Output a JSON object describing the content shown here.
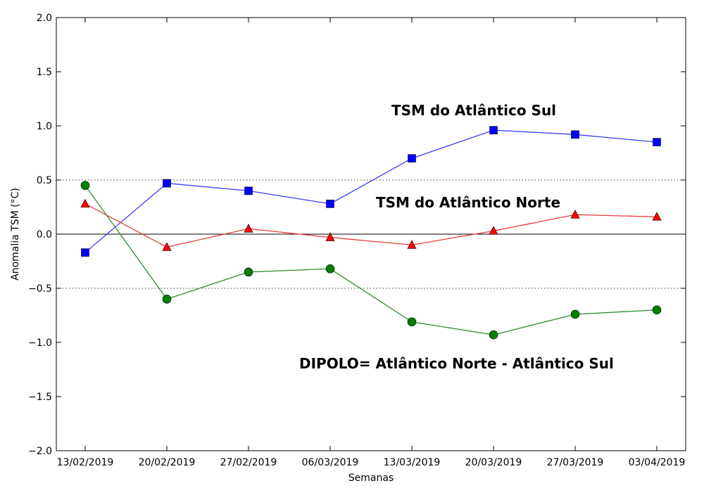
{
  "chart_data": {
    "type": "line",
    "title": "",
    "xlabel": "Semanas",
    "ylabel": "Anomalia TSM (°C)",
    "categories": [
      "13/02/2019",
      "20/02/2019",
      "27/02/2019",
      "06/03/2019",
      "13/03/2019",
      "20/03/2019",
      "27/03/2019",
      "03/04/2019"
    ],
    "ylim": [
      -2.0,
      2.0
    ],
    "yticks": [
      2.0,
      1.5,
      1.0,
      0.5,
      0.0,
      -0.5,
      -1.0,
      -1.5,
      -2.0
    ],
    "ytick_labels": [
      "2.0",
      "1.5",
      "1.0",
      "0.5",
      "0.0",
      "−0.5",
      "−1.0",
      "−1.5",
      "−2.0"
    ],
    "reference_lines": [
      {
        "value": 0.5,
        "style": "dotted"
      },
      {
        "value": 0.0,
        "style": "solid"
      },
      {
        "value": -0.5,
        "style": "dotted"
      }
    ],
    "grid": false,
    "series": [
      {
        "name": "TSM do Atlântico Sul",
        "color": "#0000ff",
        "marker": "square",
        "values": [
          -0.17,
          0.47,
          0.4,
          0.28,
          0.7,
          0.96,
          0.92,
          0.85
        ]
      },
      {
        "name": "TSM do Atlântico Norte",
        "color": "#ff0000",
        "marker": "triangle",
        "values": [
          0.28,
          -0.12,
          0.05,
          -0.03,
          -0.1,
          0.03,
          0.18,
          0.16
        ]
      },
      {
        "name": "DIPOLO= Atlântico Norte - Atlântico Sul",
        "color": "#008000",
        "marker": "circle",
        "values": [
          0.45,
          -0.6,
          -0.35,
          -0.32,
          -0.81,
          -0.93,
          -0.74,
          -0.7
        ]
      }
    ],
    "annotations": [
      {
        "text": "TSM do Atlântico Sul",
        "series": 0
      },
      {
        "text": "TSM do Atlântico Norte",
        "series": 1
      },
      {
        "text": "DIPOLO= Atlântico Norte - Atlântico Sul",
        "series": 2
      }
    ]
  }
}
